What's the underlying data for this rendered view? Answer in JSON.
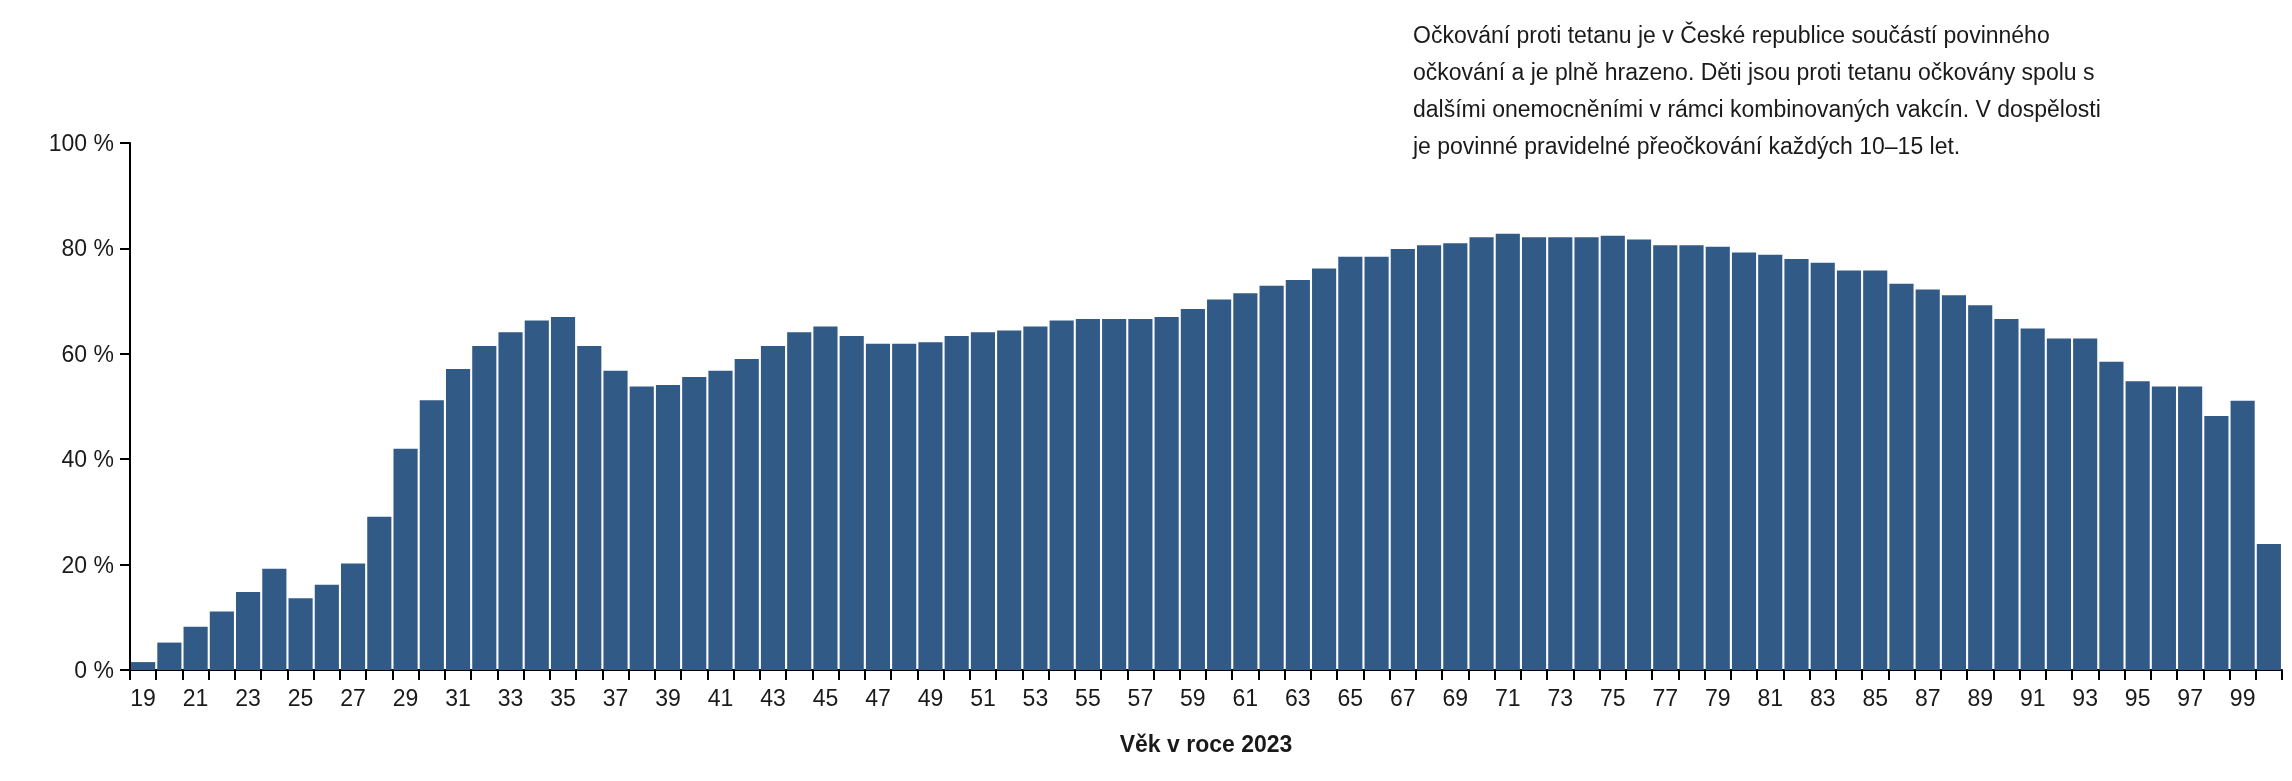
{
  "chart_data": {
    "type": "bar",
    "xlabel": "Věk v roce 2023",
    "annotations": [
      "Očkování proti tetanu je v České republice součástí povinného očkování a je plně hrazeno. Děti jsou proti tetanu očkovány spolu s dalšími onemocněními v rámci kombinovaných vakcín. V dospělosti je povinné pravidelné přeočkování každých 10–15 let."
    ],
    "categories": [
      "19",
      null,
      "21",
      null,
      "23",
      null,
      "25",
      null,
      "27",
      null,
      "29",
      null,
      "31",
      null,
      "33",
      null,
      "35",
      null,
      "37",
      null,
      "39",
      null,
      "41",
      null,
      "43",
      null,
      "45",
      null,
      "47",
      null,
      "49",
      null,
      "51",
      null,
      "53",
      null,
      "55",
      null,
      "57",
      null,
      "59",
      null,
      "61",
      null,
      "63",
      null,
      "65",
      null,
      "67",
      null,
      "69",
      null,
      "71",
      null,
      "73",
      null,
      "75",
      null,
      "77",
      null,
      "79",
      null,
      "81",
      null,
      "83",
      null,
      "85",
      null,
      "87",
      null,
      "89",
      null,
      "91",
      null,
      "93",
      null,
      "95",
      null,
      "97",
      null,
      "99",
      null
    ],
    "values": [
      1.5,
      5.2,
      8.2,
      11.1,
      14.8,
      19.2,
      13.6,
      16.2,
      20.2,
      29.1,
      42.0,
      51.2,
      57.1,
      61.5,
      64.1,
      66.3,
      67.0,
      61.5,
      56.8,
      53.8,
      54.1,
      55.6,
      56.8,
      59.0,
      61.5,
      64.1,
      65.2,
      63.4,
      61.9,
      61.9,
      62.2,
      63.4,
      64.1,
      64.4,
      65.2,
      66.3,
      66.6,
      66.6,
      66.6,
      67.0,
      68.5,
      70.3,
      71.5,
      72.9,
      74.0,
      76.2,
      78.4,
      78.4,
      79.9,
      80.6,
      81.0,
      82.1,
      82.8,
      82.1,
      82.1,
      82.1,
      82.4,
      81.7,
      80.6,
      80.6,
      80.3,
      79.2,
      78.8,
      78.0,
      77.3,
      75.8,
      75.8,
      73.3,
      72.2,
      71.1,
      69.2,
      66.6,
      64.8,
      62.9,
      62.9,
      58.5,
      54.8,
      53.8,
      53.8,
      48.2,
      51.1,
      23.9
    ],
    "color": "#325a86",
    "ylim": [
      0,
      100
    ],
    "yticks": [
      {
        "value": 0,
        "label": "0 %"
      },
      {
        "value": 20,
        "label": "20 %"
      },
      {
        "value": 40,
        "label": "40 %"
      },
      {
        "value": 60,
        "label": "60 %"
      },
      {
        "value": 80,
        "label": "80 %"
      },
      {
        "value": 100,
        "label": "100 %"
      }
    ],
    "grid": false
  }
}
